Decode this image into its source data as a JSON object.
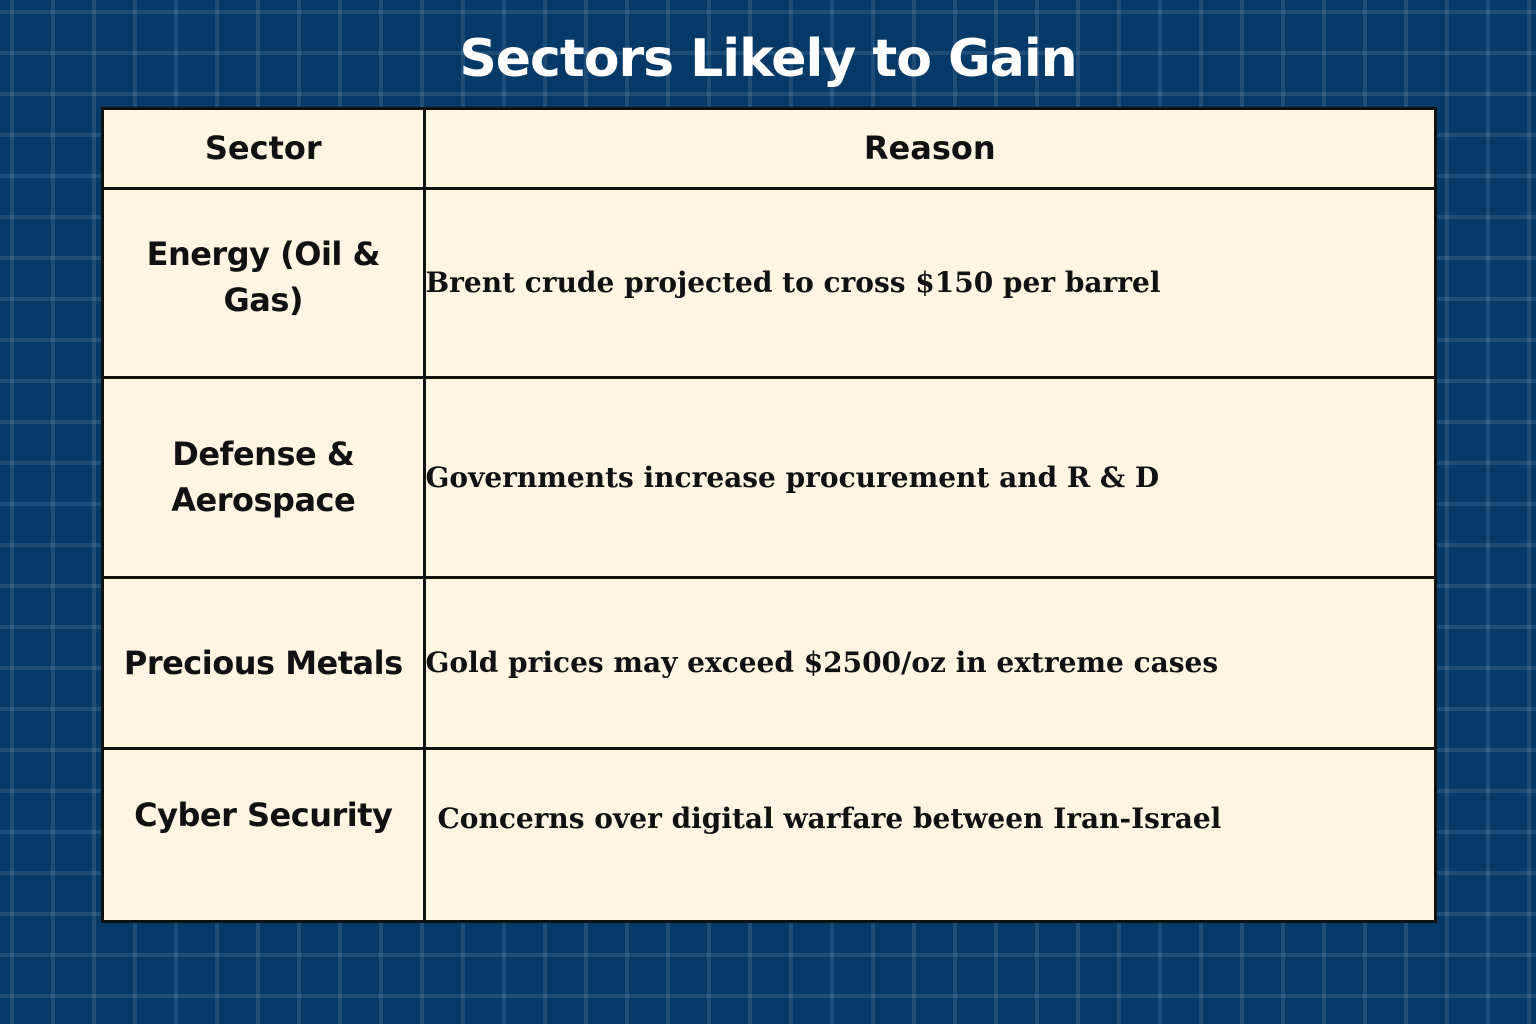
{
  "title": "Sectors Likely to Gain",
  "table": {
    "headers": {
      "sector": "Sector",
      "reason": "Reason"
    },
    "rows": [
      {
        "sector": "Energy (Oil & Gas)",
        "reason": "Brent crude projected to cross $150 per barrel"
      },
      {
        "sector": "Defense & Aerospace",
        "reason": "Governments increase procurement and R & D"
      },
      {
        "sector": "Precious Metals",
        "reason": "Gold prices may exceed $2500/oz in extreme cases"
      },
      {
        "sector": "Cyber Security",
        "reason": "Concerns over digital warfare between Iran-Israel"
      }
    ]
  },
  "colors": {
    "background": "#053968",
    "grid_line": "#2a5a86",
    "table_fill": "#fef6e2",
    "border": "#111111",
    "title_text": "#ffffff",
    "cell_text": "#111111"
  }
}
